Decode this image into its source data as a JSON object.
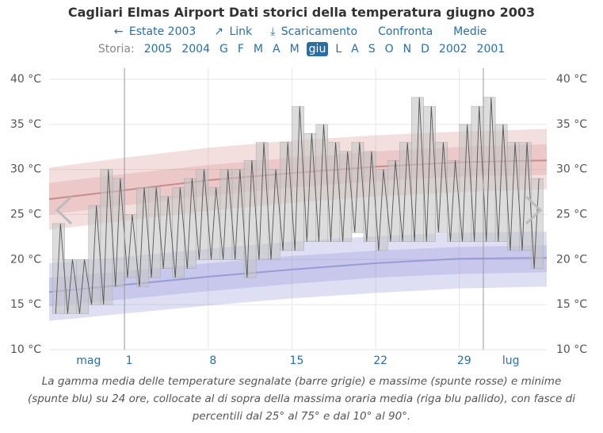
{
  "header": {
    "title": "Cagliari Elmas Airport Dati storici della temperatura giugno 2003",
    "links": [
      "Estate 2003",
      "Link",
      "Scaricamento",
      "Confronta",
      "Medie"
    ],
    "history_label": "Storia:",
    "history": [
      "2005",
      "2004",
      "G",
      "F",
      "M",
      "A",
      "M",
      "giu",
      "L",
      "A",
      "S",
      "O",
      "N",
      "D",
      "2002",
      "2001"
    ],
    "history_selected": 7
  },
  "chart_data": {
    "type": "range",
    "xlim": [
      -6.3,
      35.3
    ],
    "ylim": [
      10,
      40
    ],
    "yticks": [
      {
        "value": 10,
        "label": "10 °C"
      },
      {
        "value": 15,
        "label": "15 °C"
      },
      {
        "value": 20,
        "label": "20 °C"
      },
      {
        "value": 25,
        "label": "25 °C"
      },
      {
        "value": 30,
        "label": "30 °C"
      },
      {
        "value": 35,
        "label": "35 °C"
      },
      {
        "value": 40,
        "label": "40 °C"
      }
    ],
    "xticks": [
      {
        "value": 0,
        "label": "1"
      },
      {
        "value": 7,
        "label": "8"
      },
      {
        "value": 14,
        "label": "15"
      },
      {
        "value": 21,
        "label": "22"
      },
      {
        "value": 28,
        "label": "29"
      }
    ],
    "month_labels": [
      {
        "value": -3,
        "label": "mag"
      },
      {
        "value": 32.3,
        "label": "lug"
      }
    ],
    "month_lines": [
      0,
      30
    ],
    "grid": true,
    "high_band": {
      "color": "#d98c8c",
      "line_color": "#c98a8a",
      "x": [
        -6.3,
        0,
        7,
        14,
        21,
        28,
        35.3
      ],
      "p90": [
        30.2,
        31.3,
        32.4,
        33.2,
        33.8,
        34.2,
        34.5
      ],
      "p75": [
        28.5,
        29.5,
        30.5,
        31.3,
        32,
        32.5,
        32.8
      ],
      "mean": [
        26.7,
        27.7,
        28.8,
        29.6,
        30.3,
        30.8,
        31
      ],
      "p25": [
        25,
        26,
        27.1,
        28,
        28.7,
        29.2,
        29.4
      ],
      "p10": [
        23.3,
        24.3,
        25.4,
        26.3,
        27,
        27.5,
        27.8
      ]
    },
    "low_band": {
      "color": "#8c8cd9",
      "line_color": "#9a9ad8",
      "x": [
        -6.3,
        0,
        7,
        14,
        21,
        28,
        35.3
      ],
      "p90": [
        19.6,
        20.3,
        21.2,
        22,
        22.6,
        23,
        23.1
      ],
      "p75": [
        18,
        18.7,
        19.6,
        20.4,
        21,
        21.4,
        21.6
      ],
      "mean": [
        16.4,
        17.2,
        18.1,
        18.9,
        19.6,
        20.1,
        20.2
      ],
      "p25": [
        14.8,
        15.6,
        16.5,
        17.3,
        18,
        18.4,
        18.6
      ],
      "p10": [
        13.2,
        14,
        14.9,
        15.7,
        16.3,
        16.8,
        17
      ]
    },
    "days": {
      "color": "#c4c4c4",
      "trace_color": "#555555",
      "x": [
        -6,
        -5,
        -4,
        -3,
        -2,
        -1,
        0,
        1,
        2,
        3,
        4,
        5,
        6,
        7,
        8,
        9,
        10,
        11,
        12,
        13,
        14,
        15,
        16,
        17,
        18,
        19,
        20,
        21,
        22,
        23,
        24,
        25,
        26,
        27,
        28,
        29,
        30,
        31,
        32,
        33,
        34
      ],
      "min": [
        14,
        14,
        14,
        15,
        15,
        17,
        18,
        17,
        18,
        19,
        18,
        19,
        20,
        20,
        20,
        20,
        18,
        20,
        20,
        21,
        21,
        22,
        22,
        22,
        22,
        23,
        22,
        21,
        22,
        22,
        22,
        22,
        23,
        22,
        22,
        22,
        22,
        22,
        21,
        21,
        19
      ],
      "max": [
        24,
        20,
        20,
        26,
        30,
        29,
        25,
        28,
        28,
        27,
        28,
        29,
        30,
        28,
        30,
        30,
        31,
        33,
        30,
        33,
        37,
        34,
        35,
        33,
        32,
        33,
        32,
        30,
        31,
        33,
        38,
        37,
        33,
        31,
        35,
        37,
        38,
        35,
        33,
        33,
        29
      ]
    },
    "caption": "La gamma media delle temperature segnalate (barre grigie) e massime (spunte rosse) e minime (spunte blu) su 24 ore, collocate al di sopra della massima oraria media (riga blu pallido), con fasce di percentili dal 25° al 75° e dal 10° al 90°."
  }
}
